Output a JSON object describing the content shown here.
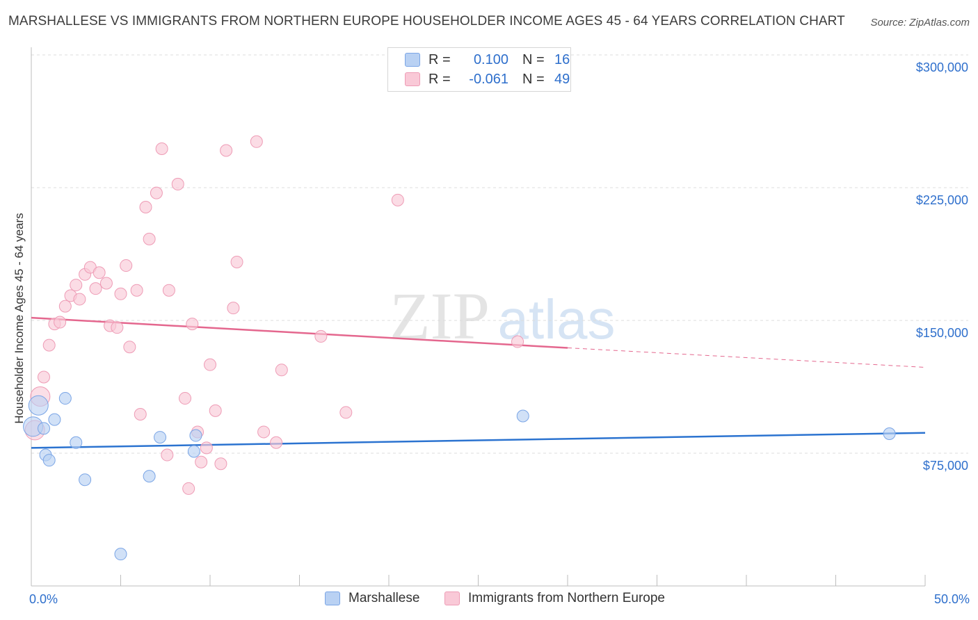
{
  "title": "MARSHALLESE VS IMMIGRANTS FROM NORTHERN EUROPE HOUSEHOLDER INCOME AGES 45 - 64 YEARS CORRELATION CHART",
  "source": "Source: ZipAtlas.com",
  "watermark_zip": "ZIP",
  "watermark_atlas": "atlas",
  "colors": {
    "blue_fill": "#b9d1f3",
    "blue_stroke": "#7aa5e6",
    "blue_line": "#2b73d0",
    "pink_fill": "#f9c9d7",
    "pink_stroke": "#ee9bb5",
    "pink_line": "#e4678e",
    "tick_label": "#2e6fcc"
  },
  "legend_top": {
    "rows": [
      {
        "r_label": "R =",
        "r_value": "0.100",
        "n_label": "N =",
        "n_value": "16"
      },
      {
        "r_label": "R =",
        "r_value": "-0.061",
        "n_label": "N =",
        "n_value": "49"
      }
    ]
  },
  "chart_data": {
    "type": "scatter",
    "title": "MARSHALLESE VS IMMIGRANTS FROM NORTHERN EUROPE HOUSEHOLDER INCOME AGES 45 - 64 YEARS CORRELATION CHART",
    "xlabel": "",
    "ylabel": "Householder Income Ages 45 - 64 years",
    "xlim": [
      0,
      50
    ],
    "ylim": [
      0,
      310000
    ],
    "x_tick_labels": [
      "0.0%",
      "50.0%"
    ],
    "y_ticks": [
      {
        "value": 75000,
        "label": "$75,000"
      },
      {
        "value": 150000,
        "label": "$150,000"
      },
      {
        "value": 225000,
        "label": "$225,000"
      },
      {
        "value": 300000,
        "label": "$300,000"
      }
    ],
    "series": [
      {
        "name": "Marshallese",
        "color": "blue",
        "r": 0.1,
        "n": 16,
        "points": [
          {
            "x": 0.1,
            "y": 90000
          },
          {
            "x": 0.4,
            "y": 102000
          },
          {
            "x": 0.7,
            "y": 89000
          },
          {
            "x": 0.8,
            "y": 74000
          },
          {
            "x": 1.0,
            "y": 71000
          },
          {
            "x": 1.3,
            "y": 94000
          },
          {
            "x": 1.9,
            "y": 106000
          },
          {
            "x": 2.5,
            "y": 81000
          },
          {
            "x": 3.0,
            "y": 60000
          },
          {
            "x": 5.0,
            "y": 18000
          },
          {
            "x": 6.6,
            "y": 62000
          },
          {
            "x": 7.2,
            "y": 84000
          },
          {
            "x": 9.1,
            "y": 76000
          },
          {
            "x": 9.2,
            "y": 85000
          },
          {
            "x": 27.5,
            "y": 96000
          },
          {
            "x": 48.0,
            "y": 86000
          }
        ],
        "trend": {
          "x0": 0,
          "y0": 78000,
          "x1": 50,
          "y1": 86500
        }
      },
      {
        "name": "Immigrants from Northern Europe",
        "color": "pink",
        "r": -0.061,
        "n": 49,
        "points": [
          {
            "x": 0.2,
            "y": 88000
          },
          {
            "x": 0.5,
            "y": 107000
          },
          {
            "x": 0.7,
            "y": 118000
          },
          {
            "x": 1.0,
            "y": 136000
          },
          {
            "x": 1.3,
            "y": 148000
          },
          {
            "x": 1.6,
            "y": 149000
          },
          {
            "x": 1.9,
            "y": 158000
          },
          {
            "x": 2.2,
            "y": 164000
          },
          {
            "x": 2.5,
            "y": 170000
          },
          {
            "x": 2.7,
            "y": 162000
          },
          {
            "x": 3.0,
            "y": 176000
          },
          {
            "x": 3.3,
            "y": 180000
          },
          {
            "x": 3.6,
            "y": 168000
          },
          {
            "x": 3.8,
            "y": 177000
          },
          {
            "x": 4.2,
            "y": 171000
          },
          {
            "x": 4.4,
            "y": 147000
          },
          {
            "x": 4.8,
            "y": 146000
          },
          {
            "x": 5.0,
            "y": 165000
          },
          {
            "x": 5.3,
            "y": 181000
          },
          {
            "x": 5.5,
            "y": 135000
          },
          {
            "x": 5.9,
            "y": 167000
          },
          {
            "x": 6.1,
            "y": 97000
          },
          {
            "x": 6.4,
            "y": 214000
          },
          {
            "x": 6.6,
            "y": 196000
          },
          {
            "x": 7.0,
            "y": 222000
          },
          {
            "x": 7.3,
            "y": 247000
          },
          {
            "x": 7.6,
            "y": 74000
          },
          {
            "x": 7.7,
            "y": 167000
          },
          {
            "x": 8.2,
            "y": 227000
          },
          {
            "x": 8.6,
            "y": 106000
          },
          {
            "x": 8.8,
            "y": 55000
          },
          {
            "x": 9.0,
            "y": 148000
          },
          {
            "x": 9.3,
            "y": 87000
          },
          {
            "x": 9.5,
            "y": 70000
          },
          {
            "x": 9.8,
            "y": 78000
          },
          {
            "x": 10.0,
            "y": 125000
          },
          {
            "x": 10.3,
            "y": 99000
          },
          {
            "x": 10.6,
            "y": 69000
          },
          {
            "x": 10.9,
            "y": 246000
          },
          {
            "x": 11.3,
            "y": 157000
          },
          {
            "x": 11.5,
            "y": 183000
          },
          {
            "x": 12.6,
            "y": 251000
          },
          {
            "x": 13.0,
            "y": 87000
          },
          {
            "x": 13.7,
            "y": 81000
          },
          {
            "x": 14.0,
            "y": 122000
          },
          {
            "x": 16.2,
            "y": 141000
          },
          {
            "x": 17.6,
            "y": 98000
          },
          {
            "x": 20.5,
            "y": 218000
          },
          {
            "x": 27.2,
            "y": 138000
          }
        ],
        "trend": {
          "x0": 0,
          "y0": 151500,
          "x1": 30,
          "y1": 134500
        },
        "trend_dashed": {
          "x0": 30,
          "y0": 134500,
          "x1": 50,
          "y1": 123500
        }
      }
    ]
  }
}
